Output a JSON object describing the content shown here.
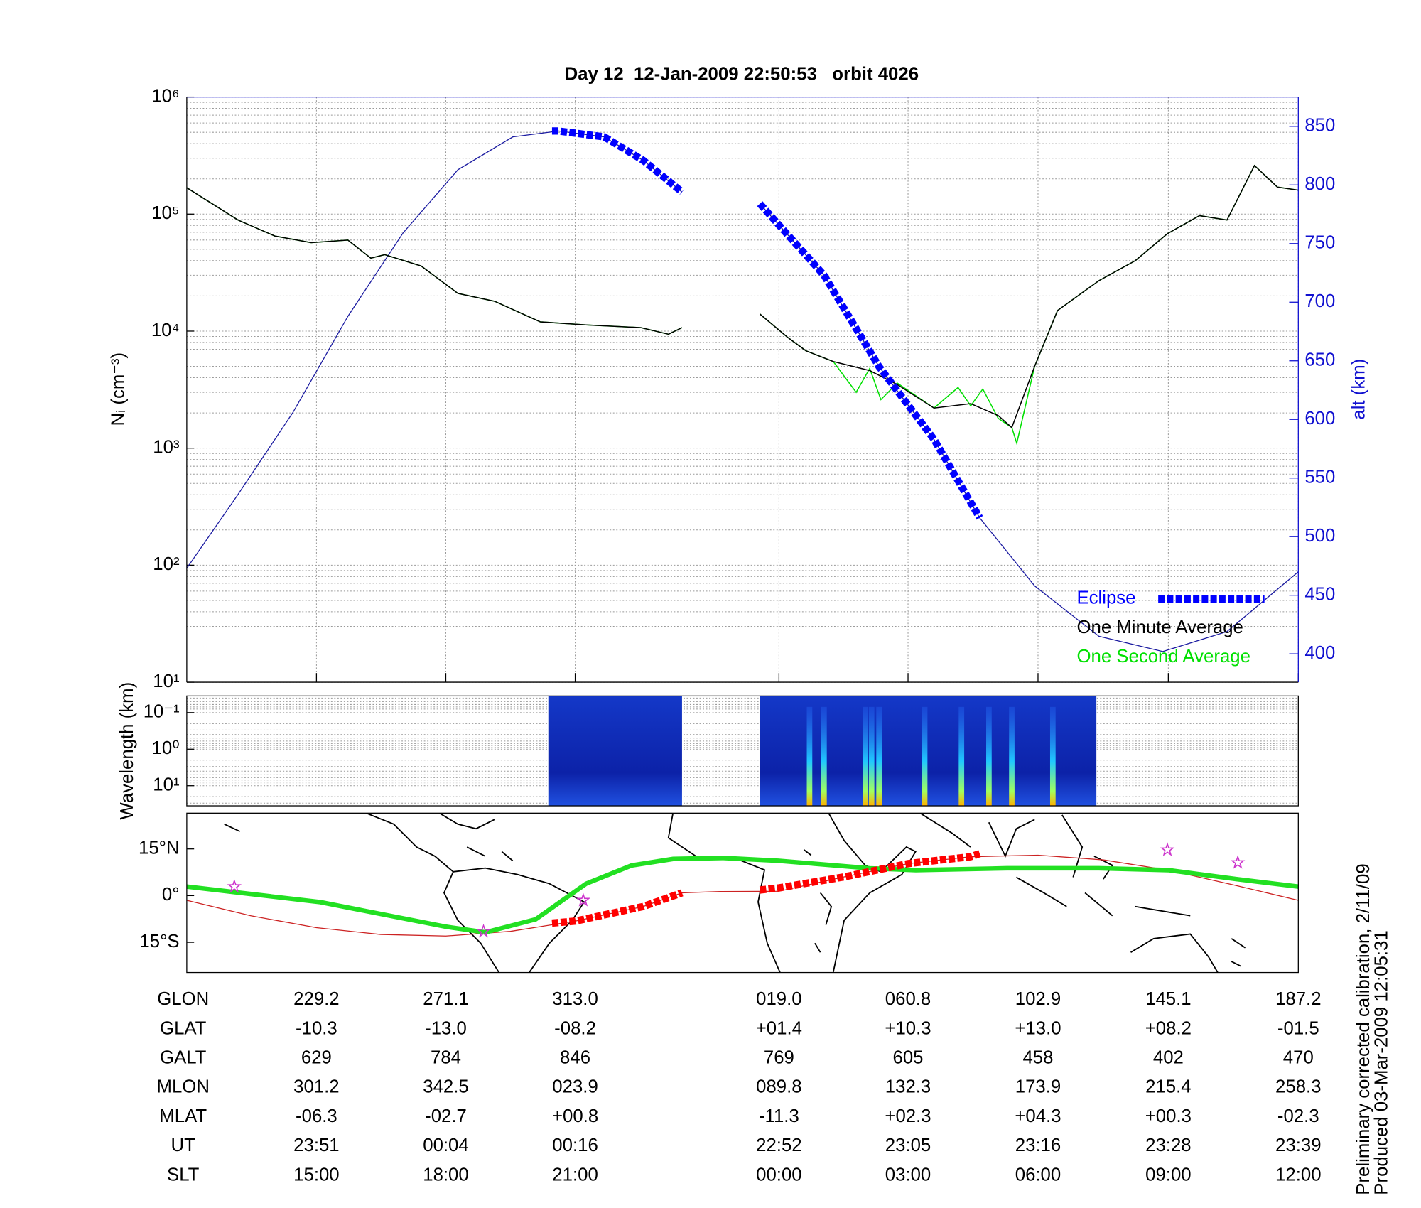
{
  "chart_data": [
    {
      "type": "line",
      "title": "Day 12  12-Jan-2009 22:50:53   orbit 4026",
      "ylabel": "Nᵢ (cm⁻³)",
      "y2label": "alt (km)",
      "xlabel": "GLON",
      "ylog": true,
      "grid": true,
      "legend": "lower right",
      "xlim": [
        187.2,
        547.2
      ],
      "xticks": [
        {
          "value": 229.2,
          "label": "229.2"
        },
        {
          "value": 271.1,
          "label": "271.1"
        },
        {
          "value": 313.0,
          "label": "313.0"
        },
        {
          "value": 379.0,
          "label": "019.0"
        },
        {
          "value": 420.8,
          "label": "060.8"
        },
        {
          "value": 462.9,
          "label": "102.9"
        },
        {
          "value": 505.1,
          "label": "145.1"
        },
        {
          "value": 547.2,
          "label": "187.2"
        }
      ],
      "ylim": [
        10,
        1000000
      ],
      "yticks": [
        {
          "value": 10,
          "label": "10¹"
        },
        {
          "value": 100,
          "label": "10²"
        },
        {
          "value": 1000,
          "label": "10³"
        },
        {
          "value": 10000,
          "label": "10⁴"
        },
        {
          "value": 100000,
          "label": "10⁵"
        },
        {
          "value": 1000000,
          "label": "10⁶"
        }
      ],
      "yminorticks": [
        20,
        30,
        40,
        50,
        60,
        70,
        80,
        90,
        200,
        300,
        400,
        500,
        600,
        700,
        800,
        900,
        2000,
        3000,
        4000,
        5000,
        6000,
        7000,
        8000,
        9000,
        20000,
        30000,
        40000,
        50000,
        60000,
        70000,
        80000,
        90000,
        200000,
        300000,
        400000,
        500000,
        600000,
        700000,
        800000,
        900000
      ],
      "y2lim": [
        375.8,
        875
      ],
      "y2ticks": [
        400,
        450,
        500,
        550,
        600,
        650,
        700,
        750,
        800,
        850
      ],
      "y2color": "#1010d0",
      "series": [
        {
          "name": "Eclipse",
          "color": "#0000ff",
          "axis": "y2",
          "style": "dashed",
          "x": [
            305.5,
            307.6,
            322.4,
            335.0,
            347.6,
            360.0,
            372.8,
            393.6,
            411.4,
            429.2,
            444.0
          ],
          "values": [
            846,
            846,
            841,
            821,
            794,
            null,
            784,
            723,
            645,
            583,
            516
          ]
        },
        {
          "name": "One Minute Average",
          "color": "#000000",
          "x": [
            187.2,
            203.8,
            215.7,
            227.5,
            239.4,
            246.8,
            251.3,
            263.1,
            275.0,
            286.9,
            301.7,
            316.5,
            334.3,
            343.2,
            347.6,
            360.0,
            372.8,
            381.7,
            387.7,
            396.6,
            408.4,
            417.3,
            429.2,
            441.1,
            450.0,
            454.4,
            461.8,
            469.2,
            482.6,
            494.4,
            504.8,
            515.2,
            524.1,
            533.0,
            540.4,
            547.2
          ],
          "values": [
            168000,
            89000,
            65000,
            57000,
            60000,
            42000,
            45000,
            36000,
            21000,
            18000,
            12000,
            11300,
            10700,
            9400,
            10700,
            null,
            14000,
            8900,
            6800,
            5500,
            4600,
            3500,
            2200,
            2400,
            1900,
            1500,
            5000,
            15000,
            27000,
            40000,
            68000,
            97000,
            89000,
            260000,
            170000,
            160000
          ]
        },
        {
          "name": "One Second Average",
          "color": "#00e000",
          "x": [
            187.2,
            203.8,
            215.7,
            227.5,
            239.4,
            246.8,
            251.3,
            263.1,
            275.0,
            286.9,
            301.7,
            316.5,
            334.3,
            343.2,
            347.6,
            360.0,
            372.8,
            381.7,
            387.7,
            396.6,
            404.0,
            408.4,
            412.0,
            417.3,
            429.2,
            437.0,
            441.1,
            445.0,
            450.0,
            454.4,
            456.0,
            461.8,
            469.2,
            482.6,
            494.4,
            504.8,
            515.2,
            524.1,
            533.0,
            540.4,
            547.2
          ],
          "values": [
            168000,
            89000,
            65000,
            57000,
            60000,
            42000,
            45000,
            36000,
            21000,
            18000,
            12000,
            11300,
            10700,
            9400,
            10700,
            null,
            14000,
            8900,
            6800,
            5500,
            3000,
            4800,
            2600,
            3600,
            2200,
            3300,
            2300,
            3200,
            1800,
            1500,
            1100,
            5000,
            15000,
            27000,
            40000,
            68000,
            97000,
            89000,
            260000,
            170000,
            160000
          ]
        },
        {
          "color": "#1a1aa0",
          "axis": "y2",
          "x": [
            187.2,
            203.8,
            221.6,
            239.4,
            257.2,
            275.0,
            292.8,
            307.6,
            322.4,
            335.0,
            347.6,
            360.0,
            372.8,
            393.6,
            411.4,
            429.2,
            444.0,
            461.8,
            482.6,
            503.3,
            524.1,
            547.2
          ],
          "values": [
            473,
            536,
            606,
            688,
            759,
            813,
            841,
            846,
            841,
            821,
            794,
            null,
            784,
            723,
            645,
            583,
            516,
            458,
            415,
            402,
            419,
            470
          ]
        }
      ]
    },
    {
      "type": "heatmap",
      "ylabel": "Wavelength (km)",
      "ylog": true,
      "grid": true,
      "xlim": [
        187.2,
        547.2
      ],
      "ylim": [
        35.5,
        0.035
      ],
      "yticks": [
        {
          "value": 0.1,
          "label": "10⁻¹"
        },
        {
          "value": 1,
          "label": "10⁰"
        },
        {
          "value": 10,
          "label": "10¹"
        }
      ],
      "yminorticks": [
        0.04,
        0.05,
        0.06,
        0.07,
        0.08,
        0.09,
        0.2,
        0.3,
        0.4,
        0.5,
        0.6,
        0.7,
        0.8,
        0.9,
        2,
        3,
        4,
        5,
        6,
        7,
        8,
        9,
        20,
        30
      ],
      "blocks": [
        {
          "x": [
            304.3,
            347.6
          ]
        },
        {
          "x": [
            372.8,
            481.8
          ]
        }
      ],
      "bursts_x": [
        388.9,
        393.6,
        407.0,
        409.0,
        411.4,
        426.2,
        438.1,
        447.0,
        454.4,
        467.7
      ]
    },
    {
      "type": "map",
      "xlim": [
        187.2,
        547.2
      ],
      "ylim": [
        -24.7,
        26.5
      ],
      "yticks": [
        {
          "value": 15,
          "label": "15°N"
        },
        {
          "value": 0,
          "label": "0°"
        },
        {
          "value": -15,
          "label": "15°S"
        }
      ],
      "series": [
        {
          "color": "#cc2222",
          "width": 1,
          "x": [
            187.2,
            208.0,
            229.2,
            250.0,
            271.1,
            292.0,
            313.0,
            335.0,
            347.6,
            360.0,
            379.0,
            400.0,
            420.8,
            441.0,
            462.9,
            484.0,
            505.1,
            526.0,
            547.2
          ],
          "values": [
            -1.5,
            -6.5,
            -10.3,
            -12.5,
            -13.0,
            -11.5,
            -8.2,
            -3.5,
            0.9,
            1.3,
            1.4,
            6.0,
            10.3,
            12.5,
            13.0,
            11.5,
            8.2,
            3.5,
            -1.5
          ]
        },
        {
          "color": "#22e022",
          "width": 5,
          "x": [
            187.2,
            230.5,
            271.1,
            283.9,
            300.2,
            316.5,
            331.3,
            344.7,
            361.0,
            378.8,
            408.4,
            423.3,
            452.9,
            482.6,
            505.1,
            527.0,
            547.2
          ],
          "values": [
            2.9,
            -2.1,
            -10.0,
            -11.8,
            -7.6,
            3.8,
            9.7,
            11.8,
            12.1,
            11.2,
            8.8,
            8.2,
            8.8,
            8.8,
            8.2,
            5.3,
            2.9
          ]
        },
        {
          "color": "#ff0000",
          "width": 8,
          "style": "dashed",
          "x": [
            305.5,
            313.0,
            335.0,
            347.6,
            360.0,
            372.8,
            379.0,
            400.0,
            420.8,
            441.0,
            444.0
          ],
          "values": [
            -8.8,
            -8.2,
            -3.5,
            0.9,
            null,
            1.8,
            2.5,
            6.0,
            10.3,
            12.5,
            13.5
          ]
        },
        {
          "color": "#cc33cc",
          "marker": "star",
          "x": [
            202.6,
            283.3,
            315.6,
            504.8,
            527.6
          ],
          "values": [
            2.9,
            -11.5,
            -1.5,
            14.7,
            10.6
          ]
        }
      ]
    }
  ],
  "table": {
    "rows": [
      {
        "label": "GLAT",
        "cells": [
          "-10.3",
          "-13.0",
          "-08.2",
          "+01.4",
          "+10.3",
          "+13.0",
          "+08.2",
          "-01.5"
        ]
      },
      {
        "label": "GALT",
        "cells": [
          "629",
          "784",
          "846",
          "769",
          "605",
          "458",
          "402",
          "470"
        ]
      },
      {
        "label": "MLON",
        "cells": [
          "301.2",
          "342.5",
          "023.9",
          "089.8",
          "132.3",
          "173.9",
          "215.4",
          "258.3"
        ]
      },
      {
        "label": "MLAT",
        "cells": [
          "-06.3",
          "-02.7",
          "+00.8",
          "-11.3",
          "+02.3",
          "+04.3",
          "+00.3",
          "-02.3"
        ]
      },
      {
        "label": "UT",
        "cells": [
          "23:51",
          "00:04",
          "00:16",
          "22:52",
          "23:05",
          "23:16",
          "23:28",
          "23:39"
        ]
      },
      {
        "label": "SLT",
        "cells": [
          "15:00",
          "18:00",
          "21:00",
          "00:00",
          "03:00",
          "06:00",
          "09:00",
          "12:00"
        ]
      }
    ]
  },
  "notes": [
    "Preliminary corrected calibration, 2/11/09",
    "Produced 03-Mar-2009 12:05:31"
  ]
}
